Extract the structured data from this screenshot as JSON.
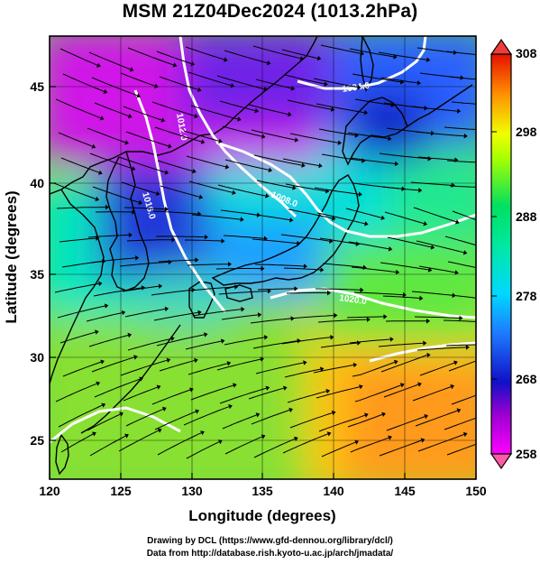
{
  "title": "MSM 21Z04Dec2024 (1013.2hPa)",
  "xaxis": {
    "label": "Longitude (degrees)",
    "ticks": [
      "120",
      "125",
      "130",
      "135",
      "140",
      "145",
      "150"
    ]
  },
  "yaxis": {
    "label": "Latitude  (degrees)",
    "ticks": [
      "25",
      "30",
      "35",
      "40",
      "45"
    ]
  },
  "colorbar": {
    "ticks": [
      "308",
      "298",
      "288",
      "278",
      "268",
      "258"
    ]
  },
  "contour_labels": [
    "1004.0",
    "1008.0",
    "1012.0",
    "1016.0",
    "1020.0"
  ],
  "credits": [
    "Drawing by DCL (https://www.gfd-dennou.org/library/dcl/)",
    "Data from http://database.rish.kyoto-u.ac.jp/arch/jmadata/"
  ],
  "map_data": {
    "extent": {
      "lon": [
        120,
        150
      ],
      "lat": [
        22.4,
        47.6
      ]
    },
    "shading_range": [
      258,
      308
    ],
    "palette": [
      "#ff00ff",
      "#1010c8",
      "#00d8ff",
      "#00e060",
      "#f0ff00",
      "#ff9000",
      "#e61000"
    ]
  }
}
